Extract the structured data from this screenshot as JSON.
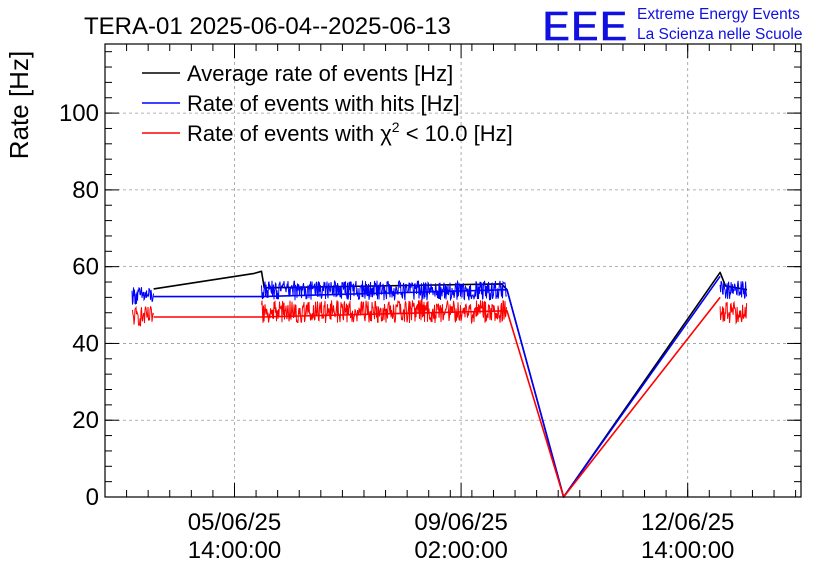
{
  "chart_data": {
    "type": "line",
    "title": "TERA-01 2025-06-04--2025-06-13",
    "ylabel": "Rate [Hz]",
    "xlabel": "",
    "ylim": [
      0,
      118
    ],
    "grid": true,
    "legend_placement": "top-left",
    "logo": {
      "mark": "EEE",
      "line1": "Extreme Energy Events",
      "line2": "La Scienza nelle Scuole",
      "color": "#1010e0"
    },
    "x_ticks": [
      {
        "at": "05/06/25 14:00:00",
        "line1": "05/06/25",
        "line2": "14:00:00"
      },
      {
        "at": "09/06/25 02:00:00",
        "line1": "09/06/25",
        "line2": "02:00:00"
      },
      {
        "at": "12/06/25 14:00:00",
        "line1": "12/06/25",
        "line2": "14:00:00"
      }
    ],
    "x_range": [
      "03/06/25 14:00:00",
      "14/06/25 08:00:00"
    ],
    "y_ticks": [
      0,
      20,
      40,
      60,
      80,
      100
    ],
    "series": [
      {
        "name": "Average rate of events [Hz]",
        "color": "#000000",
        "points": [
          [
            "04/06/25 08:00:00",
            54.2
          ],
          [
            "05/06/25 21:00:00",
            58.2
          ],
          [
            "06/06/25 00:00:00",
            58.8
          ],
          [
            "06/06/25 01:00:00",
            54.5
          ],
          [
            "09/06/25 17:00:00",
            55.5
          ],
          [
            "09/06/25 19:00:00",
            54.0
          ],
          [
            "10/06/25 16:00:00",
            0.0
          ],
          [
            "13/06/25 02:00:00",
            58.5
          ],
          [
            "13/06/25 04:00:00",
            55.0
          ],
          [
            "13/06/25 12:00:00",
            54.0
          ]
        ]
      },
      {
        "name": "Rate of events with hits [Hz]",
        "color": "#0000ff",
        "noisy": [
          {
            "from": "04/06/25 00:00:00",
            "to": "04/06/25 08:00:00",
            "level": 52.5,
            "spread": 2.4
          },
          {
            "from": "06/06/25 00:00:00",
            "to": "09/06/25 19:00:00",
            "level": 53.8,
            "spread": 2.6
          },
          {
            "from": "13/06/25 02:00:00",
            "to": "13/06/25 12:00:00",
            "level": 54.0,
            "spread": 2.4
          }
        ],
        "points": [
          [
            "04/06/25 08:00:00",
            52.2
          ],
          [
            "06/06/25 00:00:00",
            52.2
          ],
          [
            "09/06/25 19:00:00",
            54.0
          ],
          [
            "10/06/25 16:00:00",
            0.0
          ],
          [
            "13/06/25 02:00:00",
            57.5
          ]
        ]
      },
      {
        "name": "Rate of events with χ² < 10.0 [Hz]",
        "legend_parts": [
          "Rate of events with ",
          "χ",
          "2",
          " < 10.0 [Hz]"
        ],
        "color": "#ff0000",
        "noisy": [
          {
            "from": "04/06/25 00:00:00",
            "to": "04/06/25 08:00:00",
            "level": 47.0,
            "spread": 2.6
          },
          {
            "from": "06/06/25 00:00:00",
            "to": "09/06/25 19:00:00",
            "level": 48.3,
            "spread": 3.0
          },
          {
            "from": "13/06/25 02:00:00",
            "to": "13/06/25 12:00:00",
            "level": 48.0,
            "spread": 2.8
          }
        ],
        "points": [
          [
            "04/06/25 08:00:00",
            46.9
          ],
          [
            "06/06/25 00:00:00",
            46.9
          ],
          [
            "09/06/25 19:00:00",
            48.5
          ],
          [
            "10/06/25 16:00:00",
            0.0
          ],
          [
            "13/06/25 02:00:00",
            52.0
          ]
        ]
      }
    ]
  }
}
